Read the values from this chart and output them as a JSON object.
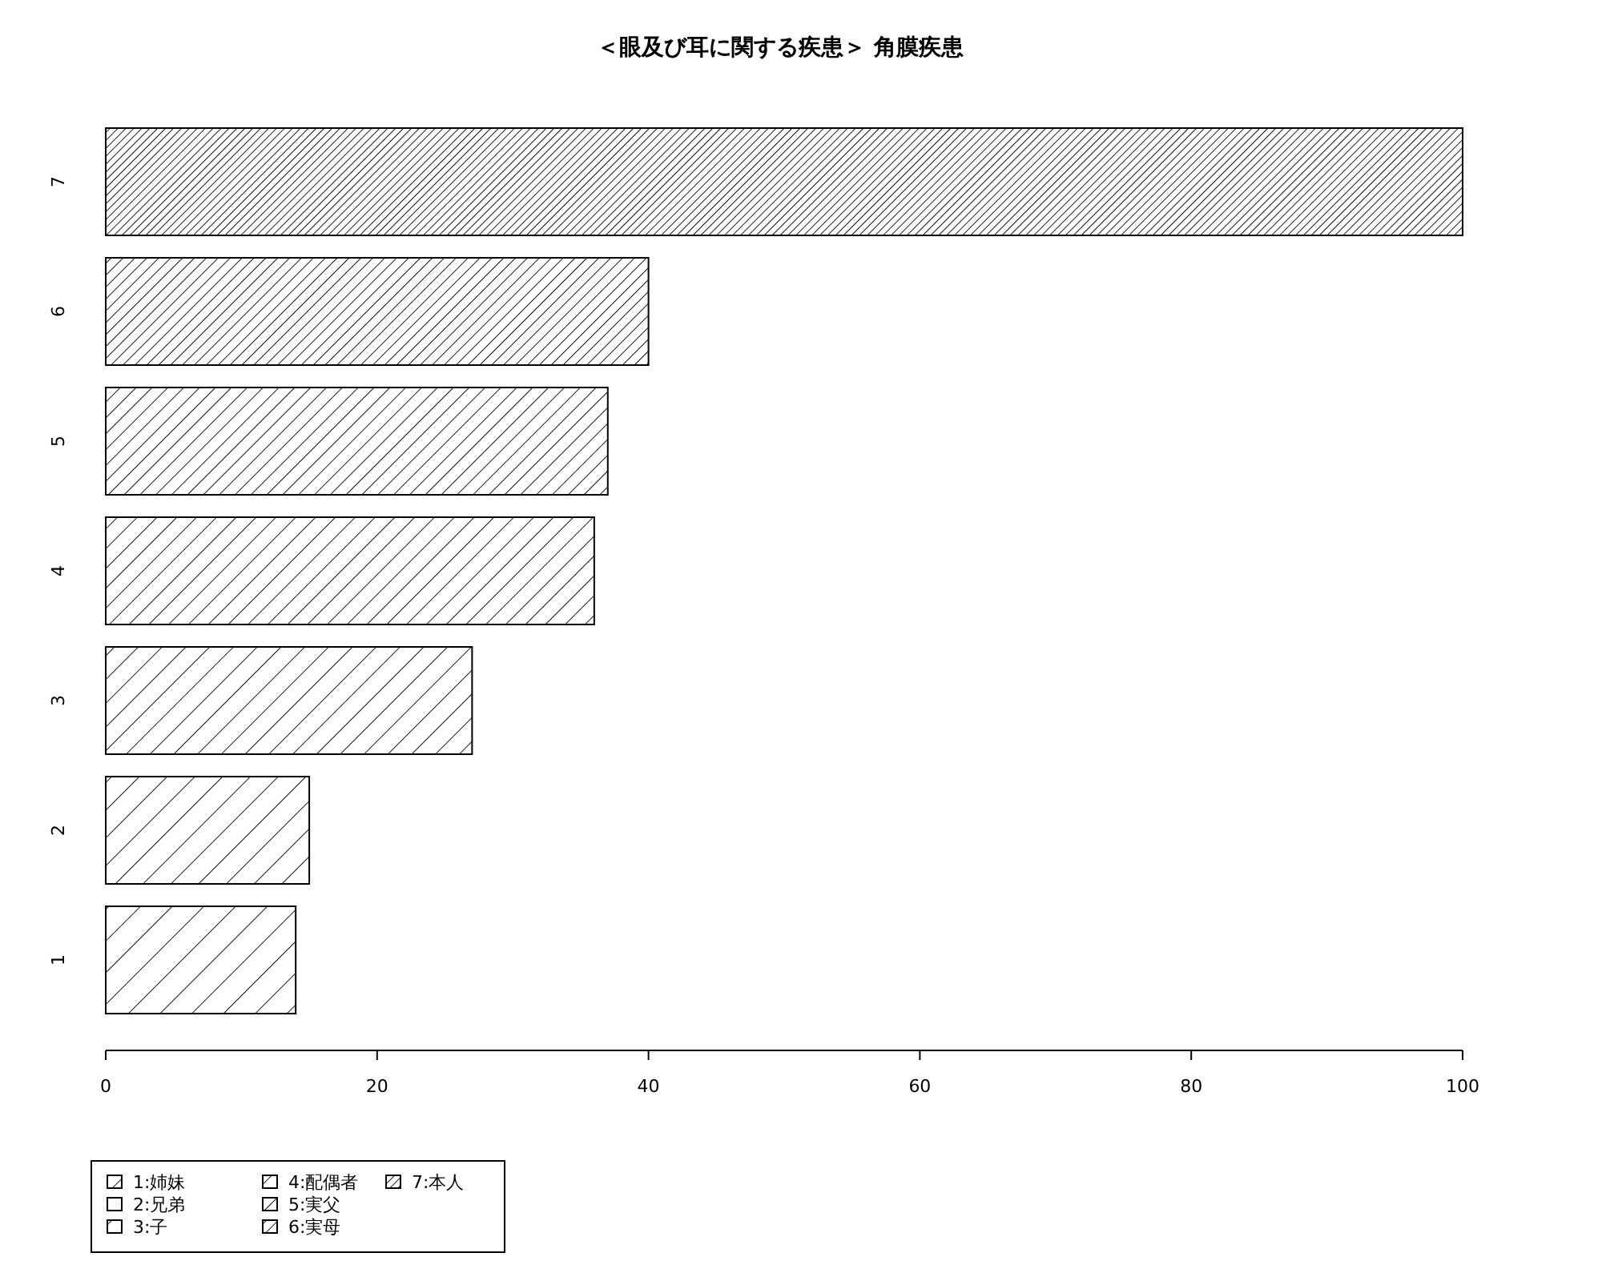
{
  "chart_data": {
    "type": "bar",
    "orientation": "horizontal",
    "title": "＜眼及び耳に関する疾患＞ 角膜疾患",
    "categories": [
      "7",
      "6",
      "5",
      "4",
      "3",
      "2",
      "1"
    ],
    "series": [
      {
        "name": "1:姉妹",
        "color": "#000000",
        "values": [
          null,
          null,
          null,
          null,
          null,
          null,
          14
        ]
      },
      {
        "name": "2:兄弟",
        "color": "#000000",
        "values": [
          null,
          null,
          null,
          null,
          null,
          15,
          null
        ]
      },
      {
        "name": "3:子",
        "color": "#000000",
        "values": [
          null,
          null,
          null,
          null,
          27,
          null,
          null
        ]
      },
      {
        "name": "4:配偶者",
        "color": "#000000",
        "values": [
          null,
          null,
          null,
          36,
          null,
          null,
          null
        ]
      },
      {
        "name": "5:実父",
        "color": "#000000",
        "values": [
          null,
          null,
          37,
          null,
          null,
          null,
          null
        ]
      },
      {
        "name": "6:実母",
        "color": "#000000",
        "values": [
          null,
          40,
          null,
          null,
          null,
          null,
          null
        ]
      },
      {
        "name": "7:本人",
        "color": "#000000",
        "values": [
          100,
          null,
          null,
          null,
          null,
          null,
          null
        ]
      }
    ],
    "xlim": [
      0,
      100
    ],
    "xticks": [
      0,
      20,
      40,
      60,
      80,
      100
    ],
    "legend": "bottom left",
    "grid": false
  }
}
